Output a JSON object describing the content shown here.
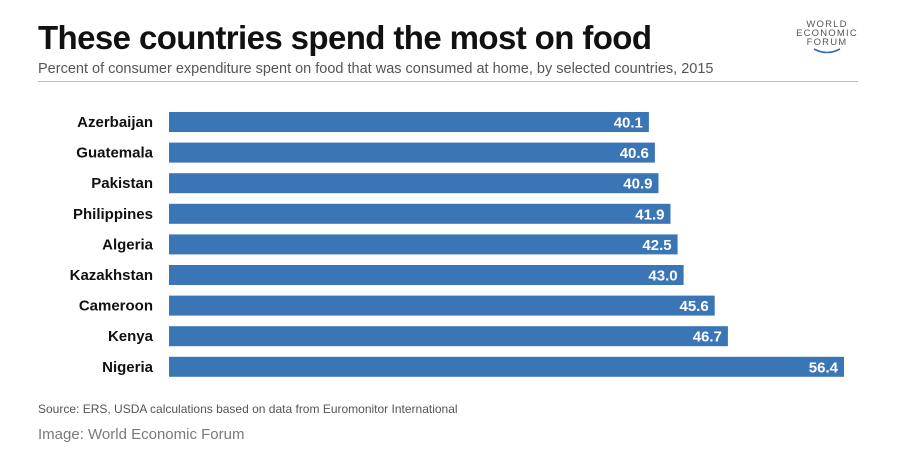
{
  "header": {
    "title": "These countries spend the most on food",
    "subtitle": "Percent of consumer expenditure spent on food that was consumed at home, by selected countries, 2015"
  },
  "logo": {
    "lines": [
      "WORLD",
      "ECONOMIC",
      "FORUM"
    ]
  },
  "colors": {
    "bar": "#3a75b6",
    "bar_label": "#ffffff",
    "category_label": "#111111"
  },
  "chart_data": {
    "type": "bar",
    "orientation": "horizontal",
    "categories": [
      "Azerbaijan",
      "Guatemala",
      "Pakistan",
      "Philippines",
      "Algeria",
      "Kazakhstan",
      "Cameroon",
      "Kenya",
      "Nigeria"
    ],
    "values": [
      40.1,
      40.6,
      40.9,
      41.9,
      42.5,
      43.0,
      45.6,
      46.7,
      56.4
    ],
    "value_labels": [
      "40.1",
      "40.6",
      "40.9",
      "41.9",
      "42.5",
      "43.0",
      "45.6",
      "46.7",
      "56.4"
    ],
    "xlim": [
      0,
      56.4
    ],
    "grid": false,
    "legend": "none"
  },
  "footer": {
    "source": "Source: ERS, USDA calculations based on data from Euromonitor International",
    "credit": "Image: World Economic Forum"
  }
}
